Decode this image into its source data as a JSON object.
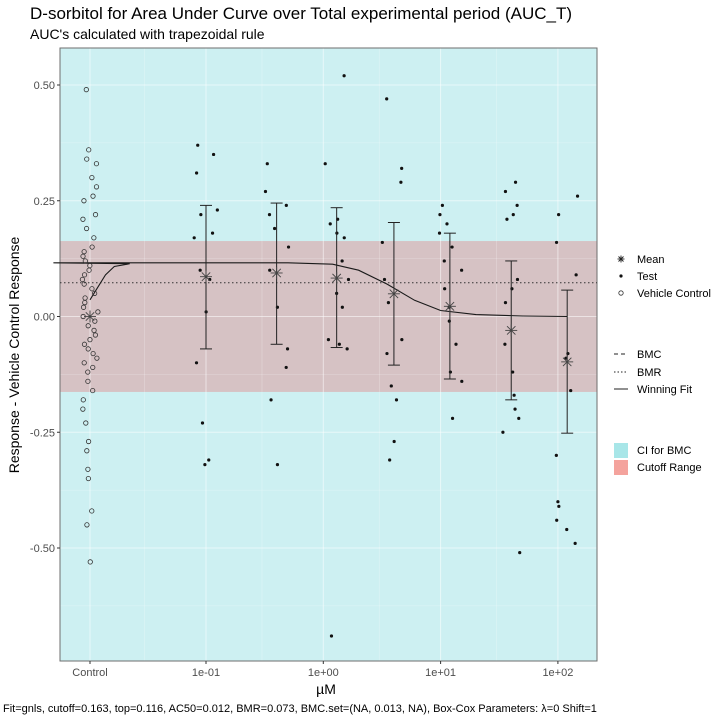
{
  "chart_data": {
    "type": "scatter",
    "title": "D-sorbitol for Area Under Curve over Total experimental period (AUC_T)",
    "subtitle": "AUC's calculated with trapezoidal rule",
    "xlabel": "µM",
    "ylabel": "Response - Vehicle Control Response",
    "footnote": "Fit=gnls, cutoff=0.163, top=0.116, AC50=0.012, BMR=0.073, BMC.set=(NA, 0.013, NA), Box-Cox Parameters: λ=0 Shift=1",
    "x_scale": "log10",
    "x_ticks": [
      {
        "label": "Control",
        "x": "Control"
      },
      {
        "label": "1e-01",
        "x": 0.1
      },
      {
        "label": "1e+00",
        "x": 1
      },
      {
        "label": "1e+01",
        "x": 10
      },
      {
        "label": "1e+02",
        "x": 100
      }
    ],
    "y_ticks": [
      {
        "label": "-0.50",
        "y": -0.5
      },
      {
        "label": "-0.25",
        "y": -0.25
      },
      {
        "label": "0.00",
        "y": 0
      },
      {
        "label": "0.25",
        "y": 0.25
      },
      {
        "label": "0.50",
        "y": 0.5
      }
    ],
    "ylim": [
      -0.75,
      0.58
    ],
    "grid": true,
    "bmc": 0.013,
    "bmr": 0.073,
    "cutoff": 0.163,
    "colors": {
      "ci_for_bmc": "#a8e6e8",
      "cutoff_range": "#f4a39d",
      "vehicle_band": "#cdf0f2",
      "band_overlap": "#d6c2c4",
      "panel_border": "#6e6e6e"
    },
    "legend": {
      "points": [
        {
          "label": "Mean",
          "symbol": "asterisk"
        },
        {
          "label": "Test",
          "symbol": "dot"
        },
        {
          "label": "Vehicle Control",
          "symbol": "circle"
        }
      ],
      "lines": [
        {
          "label": "BMC",
          "linetype": "dashed"
        },
        {
          "label": "BMR",
          "linetype": "dotted"
        },
        {
          "label": "Winning Fit",
          "linetype": "solid"
        }
      ],
      "fills": [
        {
          "label": "CI for BMC",
          "color": "#a8e6e8"
        },
        {
          "label": "Cutoff Range",
          "color": "#f4a39d"
        }
      ]
    },
    "vehicle_control": [
      0.49,
      0.36,
      0.34,
      0.33,
      0.3,
      0.28,
      0.26,
      0.25,
      0.22,
      0.21,
      0.19,
      0.17,
      0.15,
      0.14,
      0.13,
      0.12,
      0.11,
      0.1,
      0.09,
      0.08,
      0.07,
      0.06,
      0.05,
      0.04,
      0.03,
      0.02,
      0.01,
      0.0,
      -0.01,
      -0.02,
      -0.03,
      -0.04,
      -0.05,
      -0.06,
      -0.07,
      -0.08,
      -0.09,
      -0.1,
      -0.11,
      -0.12,
      -0.14,
      -0.16,
      -0.18,
      -0.2,
      -0.23,
      -0.27,
      -0.29,
      -0.33,
      -0.35,
      -0.42,
      -0.45,
      -0.53
    ],
    "test_groups": [
      {
        "conc": 0.1,
        "values": [
          0.37,
          0.35,
          0.31,
          0.23,
          0.22,
          0.18,
          0.17,
          0.1,
          0.08,
          0.01,
          -0.1,
          -0.23,
          -0.31,
          -0.32
        ]
      },
      {
        "conc": 0.4,
        "values": [
          0.33,
          0.27,
          0.24,
          0.22,
          0.19,
          0.15,
          0.1,
          0.02,
          -0.07,
          -0.11,
          -0.18,
          -0.32
        ]
      },
      {
        "conc": 1.3,
        "values": [
          0.52,
          0.33,
          0.21,
          0.2,
          0.18,
          0.17,
          0.12,
          0.08,
          0.05,
          0.02,
          -0.05,
          -0.06,
          -0.07,
          -0.69
        ]
      },
      {
        "conc": 4.0,
        "values": [
          0.47,
          0.32,
          0.29,
          0.16,
          0.08,
          0.03,
          -0.05,
          -0.08,
          -0.15,
          -0.18,
          -0.27,
          -0.31
        ]
      },
      {
        "conc": 12.0,
        "values": [
          0.24,
          0.22,
          0.2,
          0.18,
          0.15,
          0.12,
          0.1,
          0.06,
          0.02,
          -0.01,
          -0.06,
          -0.12,
          -0.14,
          -0.22
        ]
      },
      {
        "conc": 40.0,
        "values": [
          0.29,
          0.27,
          0.24,
          0.22,
          0.21,
          0.08,
          0.06,
          0.03,
          -0.06,
          -0.12,
          -0.17,
          -0.2,
          -0.22,
          -0.25,
          -0.51
        ]
      },
      {
        "conc": 120.0,
        "values": [
          0.26,
          0.22,
          0.16,
          0.09,
          -0.08,
          -0.09,
          -0.16,
          -0.3,
          -0.4,
          -0.41,
          -0.44,
          -0.46,
          -0.49
        ]
      }
    ],
    "means": [
      {
        "conc": "Control",
        "mean": 0.0
      },
      {
        "conc": 0.1,
        "mean": 0.086,
        "lower": -0.07,
        "upper": 0.24
      },
      {
        "conc": 0.4,
        "mean": 0.094,
        "lower": -0.06,
        "upper": 0.245
      },
      {
        "conc": 1.3,
        "mean": 0.083,
        "lower": -0.067,
        "upper": 0.235
      },
      {
        "conc": 4.0,
        "mean": 0.049,
        "lower": -0.105,
        "upper": 0.203
      },
      {
        "conc": 12.0,
        "mean": 0.022,
        "lower": -0.135,
        "upper": 0.18
      },
      {
        "conc": 40.0,
        "mean": -0.03,
        "lower": -0.18,
        "upper": 0.12
      },
      {
        "conc": 120.0,
        "mean": -0.098,
        "lower": -0.252,
        "upper": 0.057
      }
    ],
    "winning_fit": [
      {
        "x": 0.0009,
        "y": 0.036
      },
      {
        "x": 0.0014,
        "y": 0.09
      },
      {
        "x": 0.0018,
        "y": 0.108
      },
      {
        "x": 0.0028,
        "y": 0.114
      },
      {
        "x": 0.005,
        "y": 0.116
      },
      {
        "x": 0.05,
        "y": 0.116
      },
      {
        "x": 0.5,
        "y": 0.116
      },
      {
        "x": 1.2,
        "y": 0.113
      },
      {
        "x": 2.0,
        "y": 0.1
      },
      {
        "x": 3.5,
        "y": 0.07
      },
      {
        "x": 6.0,
        "y": 0.035
      },
      {
        "x": 10.0,
        "y": 0.013
      },
      {
        "x": 20.0,
        "y": 0.004
      },
      {
        "x": 50.0,
        "y": 0.001
      },
      {
        "x": 120.0,
        "y": 0.0
      }
    ]
  }
}
